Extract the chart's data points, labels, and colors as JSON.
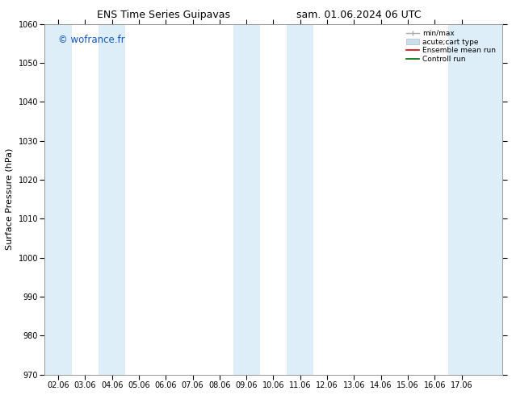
{
  "title_left": "ENS Time Series Guipavas",
  "title_right": "sam. 01.06.2024 06 UTC",
  "ylabel": "Surface Pressure (hPa)",
  "ylim": [
    970,
    1060
  ],
  "yticks": [
    970,
    980,
    990,
    1000,
    1010,
    1020,
    1030,
    1040,
    1050,
    1060
  ],
  "xtick_labels": [
    "02.06",
    "03.06",
    "04.06",
    "05.06",
    "06.06",
    "07.06",
    "08.06",
    "09.06",
    "10.06",
    "11.06",
    "12.06",
    "13.06",
    "14.06",
    "15.06",
    "16.06",
    "17.06"
  ],
  "xtick_positions": [
    1,
    2,
    3,
    4,
    5,
    6,
    7,
    8,
    9,
    10,
    11,
    12,
    13,
    14,
    15,
    16
  ],
  "xlim": [
    0.5,
    17.5
  ],
  "shaded_bands": [
    {
      "xmin": 0.5,
      "xmax": 1.5
    },
    {
      "xmin": 2.5,
      "xmax": 3.5
    },
    {
      "xmin": 7.5,
      "xmax": 8.5
    },
    {
      "xmin": 9.5,
      "xmax": 10.5
    },
    {
      "xmin": 15.5,
      "xmax": 17.5
    }
  ],
  "shade_color": "#ddeef8",
  "watermark": "© wofrance.fr",
  "watermark_color": "#1155bb",
  "legend_labels": [
    "min/max",
    "acute;cart type",
    "Ensemble mean run",
    "Controll run"
  ],
  "legend_colors": [
    "#aaaaaa",
    "#c8dff0",
    "#dd0000",
    "#006600"
  ],
  "bg_color": "#ffffff",
  "spine_color": "#999999",
  "title_fontsize": 9,
  "tick_fontsize": 7,
  "ylabel_fontsize": 8
}
